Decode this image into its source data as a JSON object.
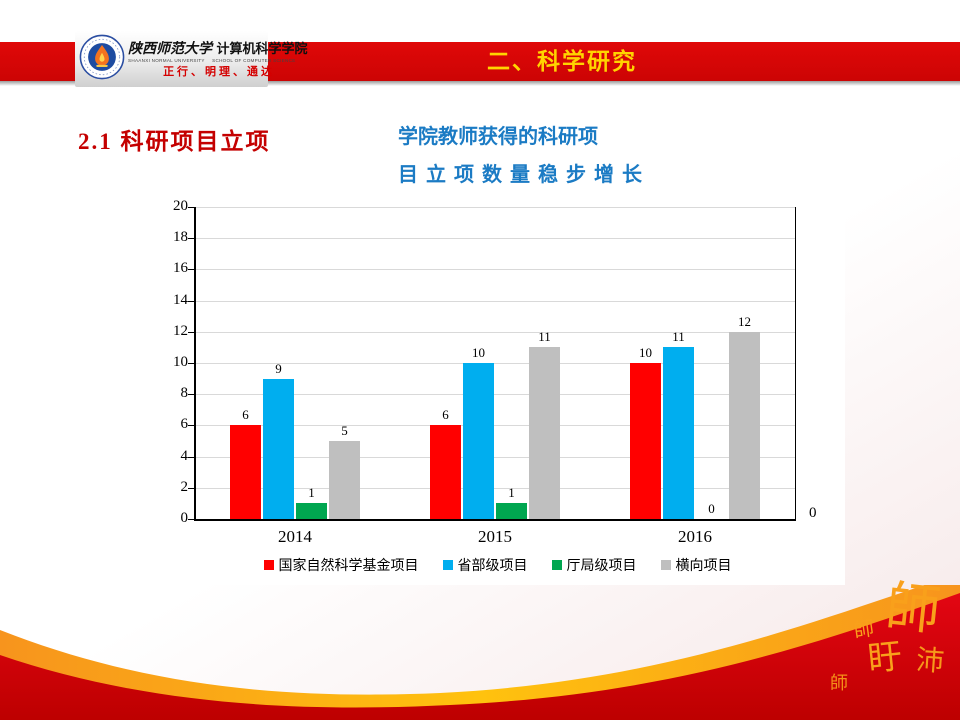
{
  "slide": {
    "header": {
      "title": "二、科学研究",
      "banner_color": "#CC0404",
      "title_color": "#FFD400"
    },
    "logo": {
      "emblem_icon": "school-emblem-flame-icon",
      "university_name": "陕西师范大学",
      "department_name": "计算机科学学院",
      "university_name_en": "SHAANXI NORMAL UNIVERSITY",
      "department_name_en": "SCHOOL OF COMPUTER SCIENCE",
      "motto": "正行、明理、通达"
    },
    "section_heading": "2.1 科研项目立项",
    "subtitle_line1": "学院教师获得的科研项",
    "subtitle_line2": "目立项数量稳步增长",
    "subtitle_color": "#1B7BC4",
    "seal_characters": [
      "師",
      "師",
      "沛",
      "盱",
      "師"
    ],
    "footer_colors": {
      "red": "#D40000",
      "gold": "#FFC20E",
      "seal_orange": "#F9A01B"
    }
  },
  "chart_data": {
    "type": "bar",
    "title": "",
    "xlabel": "",
    "ylabel": "",
    "categories": [
      "2014",
      "2015",
      "2016"
    ],
    "series": [
      {
        "name": "国家自然科学基金项目",
        "color": "#FF0000",
        "values": [
          6,
          6,
          10
        ]
      },
      {
        "name": "省部级项目",
        "color": "#00AEEF",
        "values": [
          9,
          10,
          11
        ]
      },
      {
        "name": "厅局级项目",
        "color": "#00A650",
        "values": [
          1,
          1,
          0
        ]
      },
      {
        "name": "横向项目",
        "color": "#BFBFBF",
        "values": [
          5,
          11,
          12
        ]
      }
    ],
    "ylim": [
      0,
      20
    ],
    "ytick_step": 2,
    "grid": true,
    "data_labels": true,
    "legend_position": "bottom",
    "secondary_axis_label": "0"
  }
}
